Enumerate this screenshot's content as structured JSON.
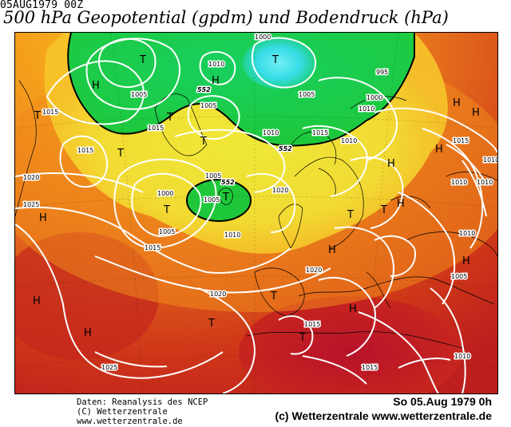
{
  "header": {
    "date_code": "05AUG1979 00Z",
    "title": "500 hPa Geopotential (gpdm) und Bodendruck (hPa)"
  },
  "footer": {
    "source_line1": "Daten: Reanalysis des NCEP",
    "source_line2": "(C) Wetterzentrale",
    "source_line3": "www.wetterzentrale.de",
    "date_line": "So 05.Aug 1979  0h",
    "copyright_line": "(c) Wetterzentrale  www.wetterzentrale.de"
  },
  "colors": {
    "geopotential_low": "#16c83a",
    "geopotential_core": "#31d6e8",
    "geopotential_mid": "#f3ee3a",
    "geopotential_orange": "#f7a21c",
    "geopotential_high": "#d23a1a",
    "geopotential_peak": "#b8122a",
    "isobar": "#ffffff",
    "coastline": "#000000"
  },
  "map": {
    "geopotential_labels": [
      "552",
      "552",
      "552"
    ],
    "isobar_labels": [
      "1000",
      "1010",
      "995",
      "1000",
      "1005",
      "1005",
      "1005",
      "1005",
      "1010",
      "1015",
      "1010",
      "1015",
      "1005",
      "1000",
      "1005",
      "1010",
      "1020",
      "1010",
      "1010",
      "1015",
      "1020",
      "1015",
      "1015",
      "1015",
      "1010",
      "1005",
      "1010",
      "1025",
      "1015",
      "1020",
      "1010",
      "1020",
      "1025",
      "1015",
      "1010"
    ],
    "pressure_centers": [
      "T",
      "H",
      "T",
      "T",
      "T",
      "T",
      "T",
      "H",
      "H",
      "T",
      "H",
      "H",
      "H",
      "H",
      "H",
      "T",
      "T",
      "H",
      "T",
      "H",
      "T",
      "H",
      "H",
      "H",
      "T",
      "T"
    ]
  }
}
